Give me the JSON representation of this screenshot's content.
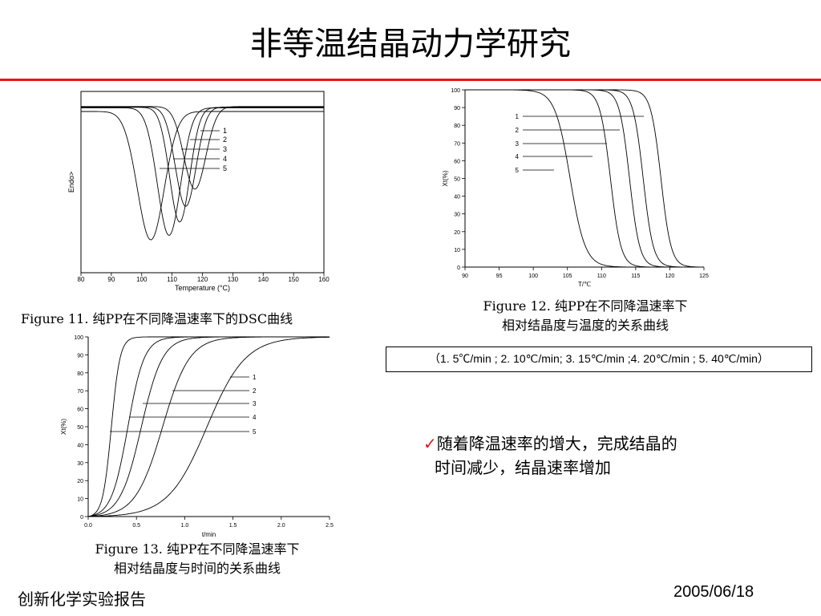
{
  "slide": {
    "title": "非等温结晶动力学研究",
    "footer_left": "创新化学实验报告",
    "footer_right": "2005/06/18",
    "rate_legend": "（1. 5℃/min ; 2. 10℃/min; 3. 15℃/min ;4. 20℃/min ; 5. 40℃/min）",
    "bullet_check": "✓",
    "bullet_lines": [
      "随着降温速率的增大，完成结晶的",
      "时间减少，结晶速率增加"
    ]
  },
  "captions": {
    "fig11": "Figure 11. 纯PP在不同降温速率下的DSC曲线",
    "fig12": [
      "Figure 12. 纯PP在不同降温速率下",
      "相对结晶度与温度的关系曲线"
    ],
    "fig13": [
      "Figure 13. 纯PP在不同降温速率下",
      "相对结晶度与时间的关系曲线"
    ]
  },
  "chart_data": [
    {
      "id": "fig11",
      "type": "line",
      "xlabel": "Temperature (°C)",
      "ylabel": "Endo>",
      "xlim": [
        80,
        160
      ],
      "xticks": [
        80,
        90,
        100,
        110,
        120,
        130,
        140,
        150,
        160
      ],
      "yticks_shown": false,
      "grid": false,
      "legend_labels": [
        "1",
        "2",
        "3",
        "4",
        "5"
      ],
      "series": [
        {
          "label": "1",
          "peak_temperature": 117.5
        },
        {
          "label": "2",
          "peak_temperature": 114.5
        },
        {
          "label": "3",
          "peak_temperature": 112.5
        },
        {
          "label": "4",
          "peak_temperature": 109
        },
        {
          "label": "5",
          "peak_temperature": 103
        }
      ]
    },
    {
      "id": "fig12",
      "type": "line",
      "xlabel": "T/℃",
      "ylabel": "Xt(%)",
      "xlim": [
        90,
        125
      ],
      "ylim": [
        0,
        100
      ],
      "xticks": [
        90,
        95,
        100,
        105,
        110,
        115,
        120,
        125
      ],
      "yticks": [
        0,
        10,
        20,
        30,
        40,
        50,
        60,
        70,
        80,
        90,
        100
      ],
      "grid": false,
      "legend_labels": [
        "1",
        "2",
        "3",
        "4",
        "5"
      ],
      "series": [
        {
          "label": "1",
          "x_at_50": 118.7
        },
        {
          "label": "2",
          "x_at_50": 116.1
        },
        {
          "label": "3",
          "x_at_50": 114.1
        },
        {
          "label": "4",
          "x_at_50": 111.3
        },
        {
          "label": "5",
          "x_at_50": 105.4
        }
      ]
    },
    {
      "id": "fig13",
      "type": "line",
      "xlabel": "t/min",
      "ylabel": "Xt(%)",
      "xlim": [
        0.0,
        2.5
      ],
      "ylim": [
        0,
        100
      ],
      "xticks": [
        "0.0",
        "0.5",
        "1.0",
        "1.5",
        "2.0",
        "2.5"
      ],
      "yticks": [
        0,
        10,
        20,
        30,
        40,
        50,
        60,
        70,
        80,
        90,
        100
      ],
      "grid": false,
      "legend_labels": [
        "1",
        "2",
        "3",
        "4",
        "5"
      ],
      "series": [
        {
          "label": "1",
          "t_at_50": 1.23
        },
        {
          "label": "2",
          "t_at_50": 0.77
        },
        {
          "label": "3",
          "t_at_50": 0.55
        },
        {
          "label": "4",
          "t_at_50": 0.41
        },
        {
          "label": "5",
          "t_at_50": 0.24
        }
      ]
    }
  ]
}
